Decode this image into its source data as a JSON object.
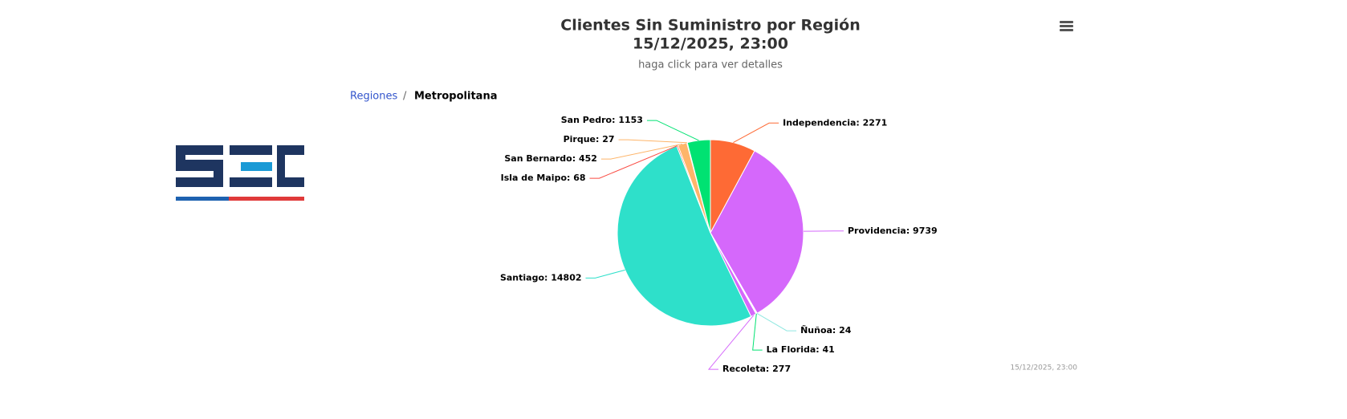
{
  "title_lines": [
    "Clientes Sin Suministro por Región",
    "15/12/2025, 23:00"
  ],
  "subtitle": "haga click para ver detalles",
  "breadcrumb": [
    "Regiones",
    "Metropolitana"
  ],
  "breadcrumb_separator": "/",
  "credits": "15/12/2025, 23:00",
  "chart_data": {
    "type": "pie",
    "categories": [
      "Independencia",
      "Providencia",
      "Ñuñoa",
      "La Florida",
      "Recoleta",
      "Santiago",
      "Isla de Maipo",
      "San Bernardo",
      "Pirque",
      "San Pedro"
    ],
    "values": [
      2271,
      9739,
      24,
      41,
      277,
      14802,
      68,
      452,
      27,
      1153
    ],
    "value_labels": [
      "Independencia: 2271",
      "Providencia: 9739",
      "Ñuñoa: 24",
      "La Florida: 41",
      "Recoleta: 277",
      "Santiago: 14802",
      "Isla de Maipo: 68",
      "San Bernardo: 452",
      "Pirque: 27",
      "San Pedro: 1153"
    ],
    "colors": [
      "#fe6a35",
      "#d568fb",
      "#91e8e1",
      "#00e272",
      "#d568fb",
      "#2ee0ca",
      "#fa4b42",
      "#feb56a",
      "#feb56a",
      "#00e272"
    ]
  }
}
